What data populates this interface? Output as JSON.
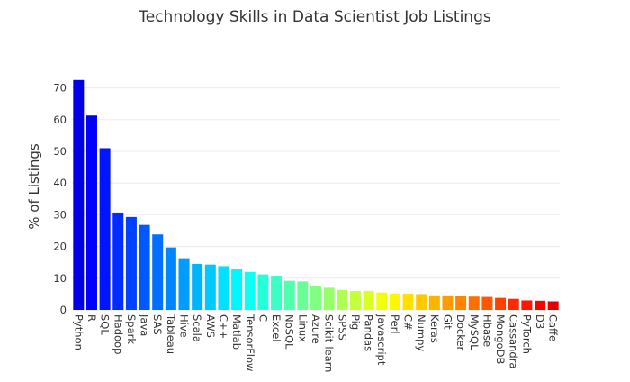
{
  "chart_data": {
    "type": "bar",
    "title": "Technology Skills in Data Scientist Job Listings",
    "xlabel": "",
    "ylabel": "% of Listings",
    "ylim": [
      0,
      75
    ],
    "yticks": [
      0,
      10,
      20,
      30,
      40,
      50,
      60,
      70
    ],
    "grid": true,
    "legend": "none",
    "colormap": "jet (dark blue to red, by rank)",
    "categories": [
      "Python",
      "R",
      "SQL",
      "Hadoop",
      "Spark",
      "Java",
      "SAS",
      "Tableau",
      "Hive",
      "Scala",
      "AWS",
      "C++",
      "Matlab",
      "TensorFlow",
      "C",
      "Excel",
      "NoSQL",
      "Linux",
      "Azure",
      "Scikit-learn",
      "SPSS",
      "Pig",
      "Pandas",
      "Javascript",
      "Perl",
      "C#",
      "Numpy",
      "Keras",
      "Git",
      "Docker",
      "MySQL",
      "Hbase",
      "MongoDB",
      "Cassandra",
      "PyTorch",
      "D3",
      "Caffe"
    ],
    "values": [
      72.5,
      61.3,
      51.0,
      30.7,
      29.3,
      26.8,
      23.8,
      19.7,
      16.3,
      14.5,
      14.3,
      13.8,
      12.8,
      12.0,
      11.2,
      10.8,
      9.2,
      9.0,
      7.6,
      7.0,
      6.3,
      6.0,
      6.0,
      5.5,
      5.2,
      5.1,
      5.0,
      4.6,
      4.6,
      4.5,
      4.2,
      4.1,
      3.8,
      3.5,
      3.0,
      2.9,
      2.7
    ]
  }
}
